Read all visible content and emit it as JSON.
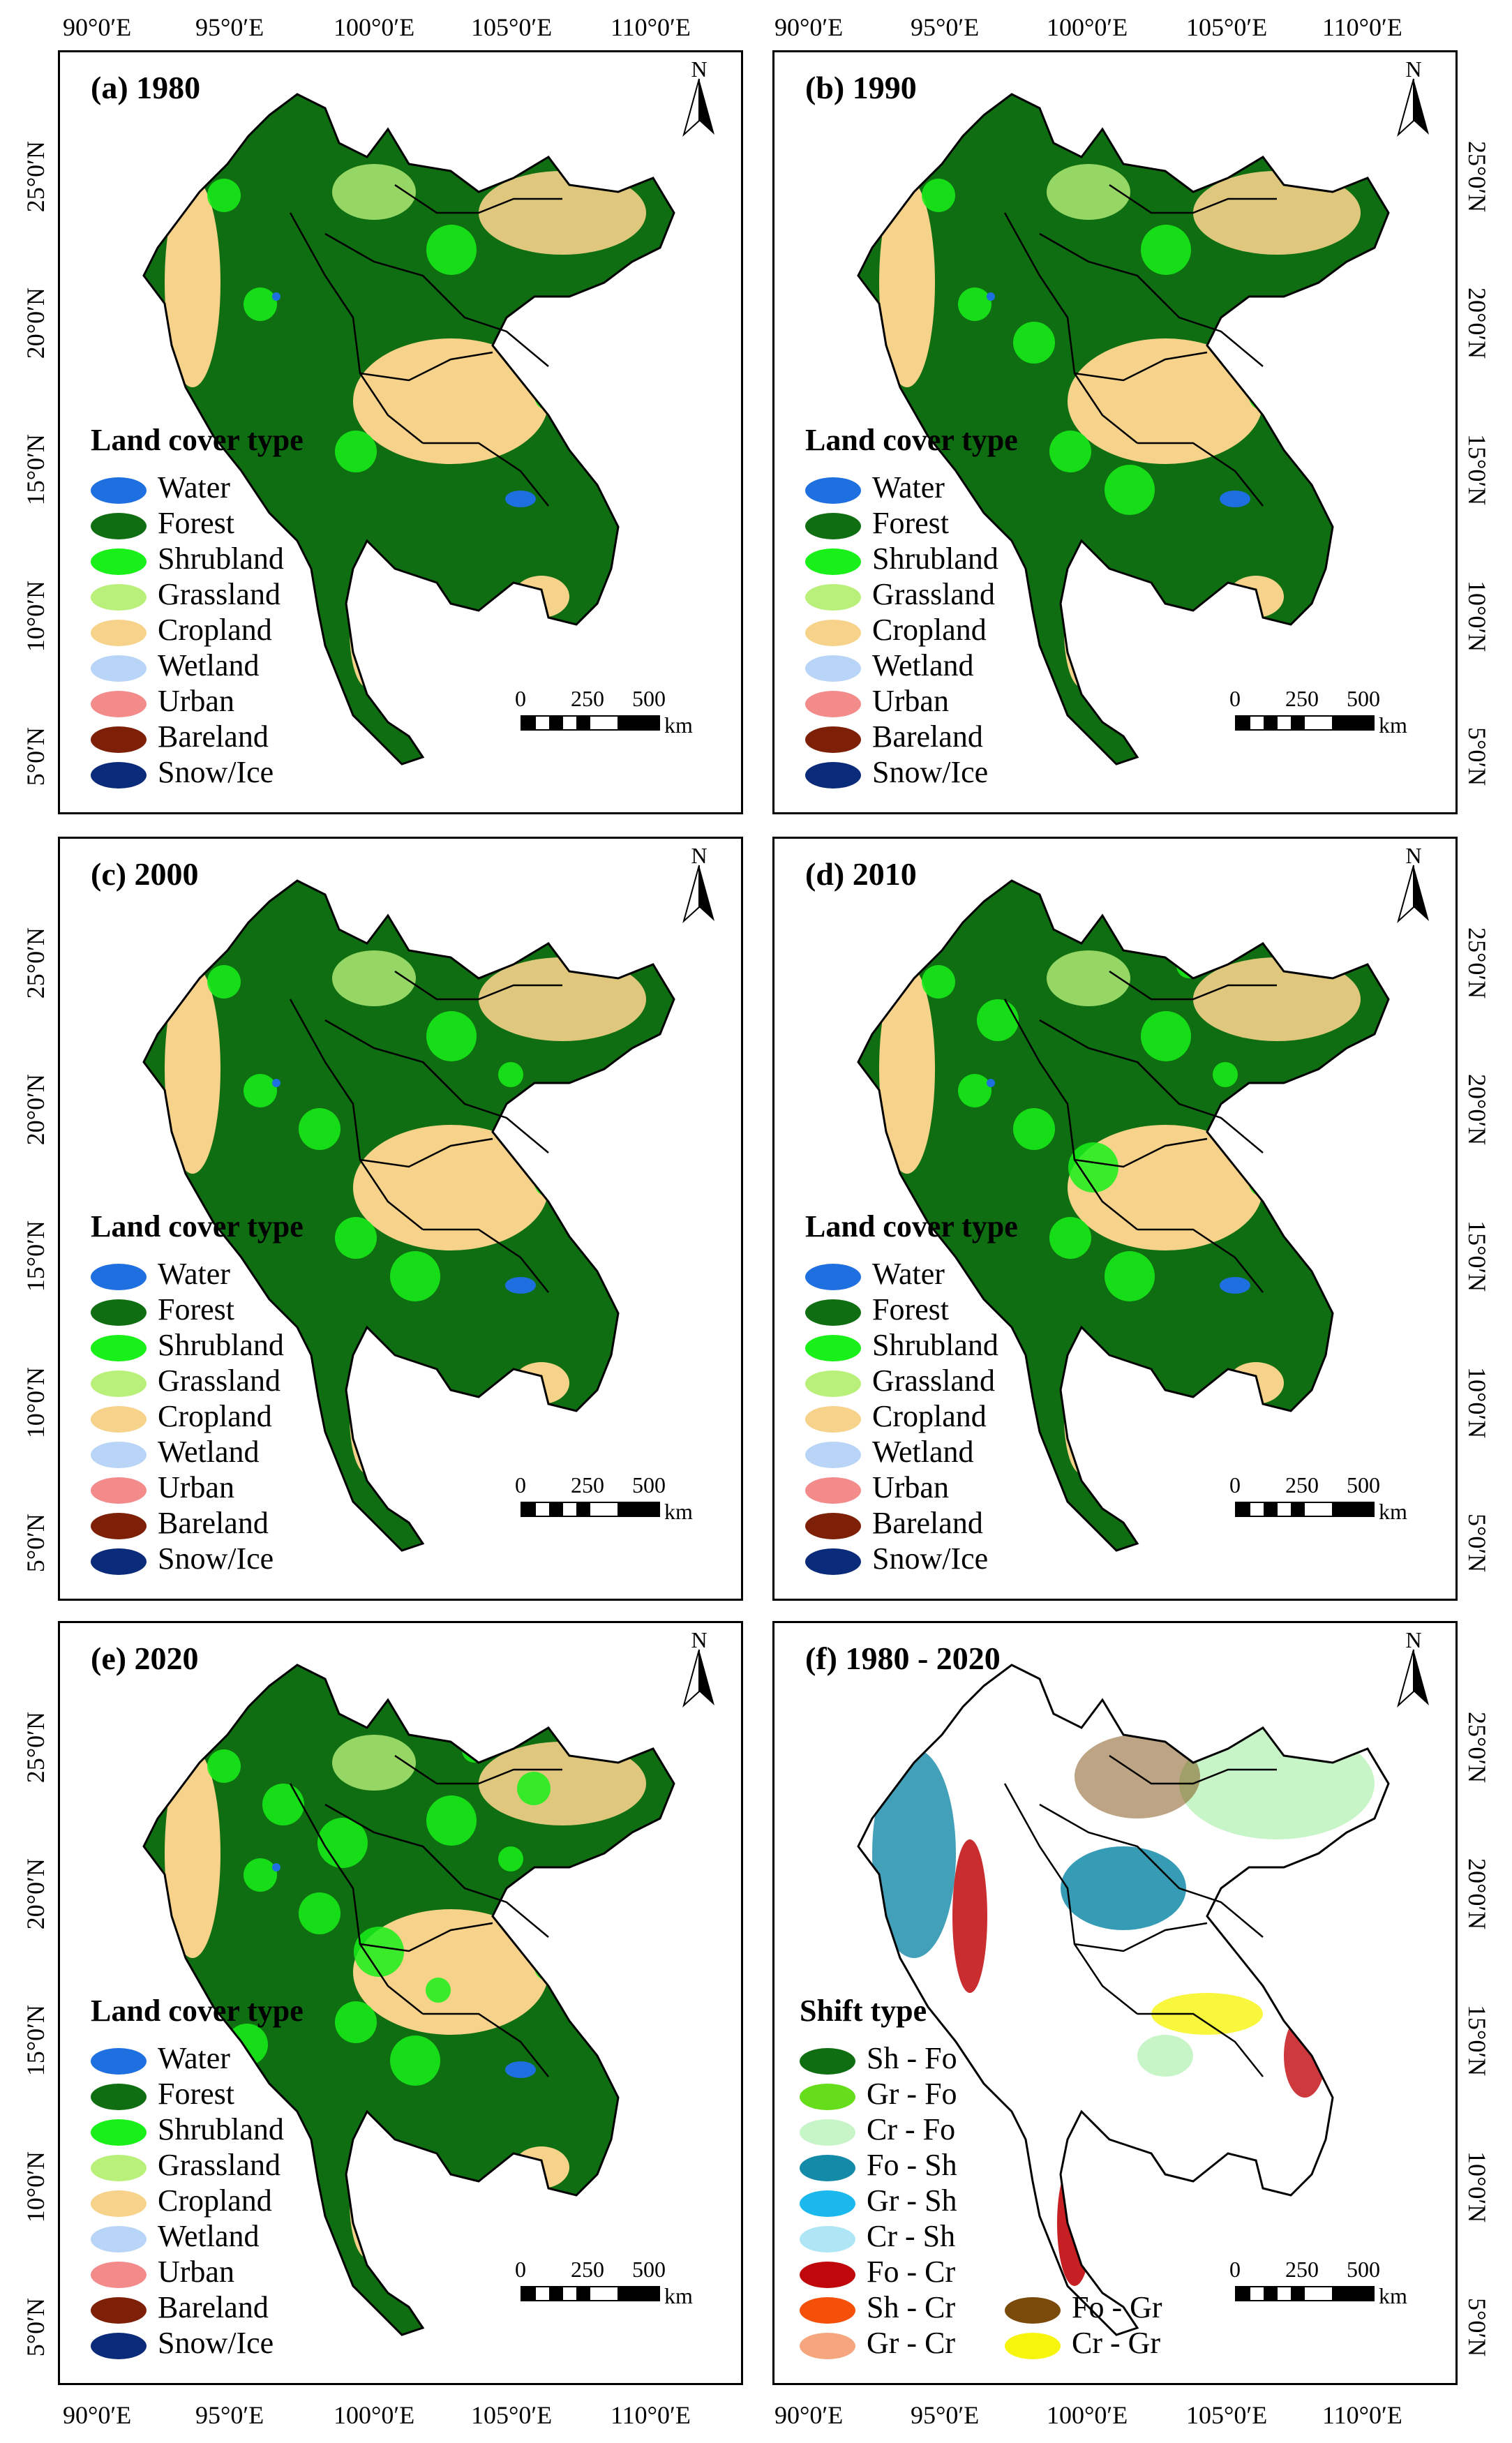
{
  "top_axis_labels": [
    "90°0′E",
    "95°0′E",
    "100°0′E",
    "105°0′E",
    "110°0′E",
    "90°0′E",
    "95°0′E",
    "100°0′E",
    "105°0′E",
    "110°0′E"
  ],
  "bottom_axis_labels": [
    "90°0′E",
    "95°0′E",
    "100°0′E",
    "105°0′E",
    "110°0′E",
    "90°0′E",
    "95°0′E",
    "100°0′E",
    "105°0′E",
    "110°0′E"
  ],
  "left_axis_labels": {
    "row1": [
      "25°0′N",
      "20°0′N",
      "15°0′N",
      "10°0′N",
      "5°0′N"
    ],
    "row2": [
      "25°0′N",
      "20°0′N",
      "15°0′N",
      "10°0′N",
      "5°0′N"
    ],
    "row3": [
      "25°0′N",
      "20°0′N",
      "15°0′N",
      "10°0′N",
      "5°0′N"
    ]
  },
  "right_axis_labels": {
    "row1": [
      "25°0′N",
      "20°0′N",
      "15°0′N",
      "10°0′N",
      "5°0′N"
    ],
    "row2": [
      "25°0′N",
      "20°0′N",
      "15°0′N",
      "10°0′N",
      "5°0′N"
    ],
    "row3": [
      "25°0′N",
      "20°0′N",
      "15°0′N",
      "10°0′N",
      "5°0′N"
    ]
  },
  "panels": [
    {
      "title": "(a) 1980",
      "legend_title": "Land cover type"
    },
    {
      "title": "(b) 1990",
      "legend_title": "Land cover type"
    },
    {
      "title": "(c) 2000",
      "legend_title": "Land cover type"
    },
    {
      "title": "(d) 2010",
      "legend_title": "Land cover type"
    },
    {
      "title": "(e) 2020",
      "legend_title": "Land cover type"
    },
    {
      "title": "(f) 1980 - 2020",
      "legend_title": "Shift type"
    }
  ],
  "land_cover_legend": [
    {
      "label": "Water",
      "color": "#1e6fe0"
    },
    {
      "label": "Forest",
      "color": "#0f6e12"
    },
    {
      "label": "Shrubland",
      "color": "#19f01a"
    },
    {
      "label": "Grassland",
      "color": "#b8f07a"
    },
    {
      "label": "Cropland",
      "color": "#f6d28a"
    },
    {
      "label": "Wetland",
      "color": "#b8d4f6"
    },
    {
      "label": "Urban",
      "color": "#f38b8b"
    },
    {
      "label": "Bareland",
      "color": "#7e1f08"
    },
    {
      "label": "Snow/Ice",
      "color": "#0a2a7a"
    }
  ],
  "shift_legend": [
    {
      "label": "Sh - Fo",
      "color": "#0f6e12"
    },
    {
      "label": "Gr - Fo",
      "color": "#66dd1a"
    },
    {
      "label": "Cr - Fo",
      "color": "#c8f5c8"
    },
    {
      "label": "Fo - Sh",
      "color": "#138aa8"
    },
    {
      "label": "Gr - Sh",
      "color": "#1ab8ec"
    },
    {
      "label": "Cr - Sh",
      "color": "#aee6f6"
    },
    {
      "label": "Fo - Cr",
      "color": "#c0080c"
    },
    {
      "label": "Sh - Cr",
      "color": "#f4500a"
    },
    {
      "label": "Gr - Cr",
      "color": "#f6a67e"
    },
    {
      "label": "Fo - Gr",
      "color": "#7a4a0a"
    },
    {
      "label": "Cr - Gr",
      "color": "#f8f50c"
    }
  ],
  "north_label": "N",
  "scale": {
    "ticks": [
      "0",
      "250",
      "500"
    ],
    "unit": "km"
  },
  "map_colors": {
    "forest": "#0f6e12",
    "shrub": "#19f01a",
    "grass": "#b8f07a",
    "crop": "#f6d28a",
    "water": "#1e6fe0",
    "shift_bg": "#eef6ee",
    "fo_cr": "#c0080c",
    "fo_sh": "#138aa8",
    "cr_fo": "#c8f5c8",
    "gr_fo": "#66dd1a",
    "cr_gr": "#f8f50c",
    "fo_gr": "#7a4a0a"
  }
}
